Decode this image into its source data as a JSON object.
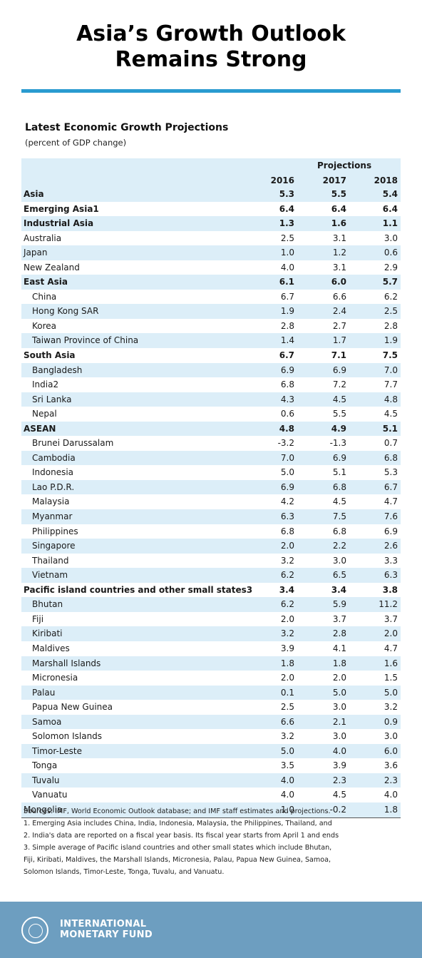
{
  "title_line1": "Asia’s Growth Outlook",
  "title_line2": "Remains Strong",
  "table_title": "Latest Economic Growth Projections",
  "table_subtitle": "(percent of GDP change)",
  "projections_label": "Projections",
  "years": [
    "2016",
    "2017",
    "2018"
  ],
  "rows": [
    {
      "label": "Asia",
      "v": [
        "5.3",
        "5.5",
        "5.4"
      ],
      "bold": true,
      "indent": false
    },
    {
      "label": "Emerging Asia1",
      "v": [
        "6.4",
        "6.4",
        "6.4"
      ],
      "bold": true,
      "indent": false
    },
    {
      "label": "Industrial Asia",
      "v": [
        "1.3",
        "1.6",
        "1.1"
      ],
      "bold": true,
      "indent": false
    },
    {
      "label": "Australia",
      "v": [
        "2.5",
        "3.1",
        "3.0"
      ],
      "bold": false,
      "indent": false
    },
    {
      "label": "Japan",
      "v": [
        "1.0",
        "1.2",
        "0.6"
      ],
      "bold": false,
      "indent": false
    },
    {
      "label": "New Zealand",
      "v": [
        "4.0",
        "3.1",
        "2.9"
      ],
      "bold": false,
      "indent": false
    },
    {
      "label": "East Asia",
      "v": [
        "6.1",
        "6.0",
        "5.7"
      ],
      "bold": true,
      "indent": false
    },
    {
      "label": "China",
      "v": [
        "6.7",
        "6.6",
        "6.2"
      ],
      "bold": false,
      "indent": true
    },
    {
      "label": "Hong Kong SAR",
      "v": [
        "1.9",
        "2.4",
        "2.5"
      ],
      "bold": false,
      "indent": true
    },
    {
      "label": "Korea",
      "v": [
        "2.8",
        "2.7",
        "2.8"
      ],
      "bold": false,
      "indent": true
    },
    {
      "label": "Taiwan Province of China",
      "v": [
        "1.4",
        "1.7",
        "1.9"
      ],
      "bold": false,
      "indent": true
    },
    {
      "label": "South Asia",
      "v": [
        "6.7",
        "7.1",
        "7.5"
      ],
      "bold": true,
      "indent": false
    },
    {
      "label": "Bangladesh",
      "v": [
        "6.9",
        "6.9",
        "7.0"
      ],
      "bold": false,
      "indent": true
    },
    {
      "label": "India2",
      "v": [
        "6.8",
        "7.2",
        "7.7"
      ],
      "bold": false,
      "indent": true
    },
    {
      "label": "Sri Lanka",
      "v": [
        "4.3",
        "4.5",
        "4.8"
      ],
      "bold": false,
      "indent": true
    },
    {
      "label": "Nepal",
      "v": [
        "0.6",
        "5.5",
        "4.5"
      ],
      "bold": false,
      "indent": true
    },
    {
      "label": "ASEAN",
      "v": [
        "4.8",
        "4.9",
        "5.1"
      ],
      "bold": true,
      "indent": false
    },
    {
      "label": "Brunei Darussalam",
      "v": [
        "-3.2",
        "-1.3",
        "0.7"
      ],
      "bold": false,
      "indent": true
    },
    {
      "label": "Cambodia",
      "v": [
        "7.0",
        "6.9",
        "6.8"
      ],
      "bold": false,
      "indent": true
    },
    {
      "label": "Indonesia",
      "v": [
        "5.0",
        "5.1",
        "5.3"
      ],
      "bold": false,
      "indent": true
    },
    {
      "label": "Lao P.D.R.",
      "v": [
        "6.9",
        "6.8",
        "6.7"
      ],
      "bold": false,
      "indent": true
    },
    {
      "label": "Malaysia",
      "v": [
        "4.2",
        "4.5",
        "4.7"
      ],
      "bold": false,
      "indent": true
    },
    {
      "label": "Myanmar",
      "v": [
        "6.3",
        "7.5",
        "7.6"
      ],
      "bold": false,
      "indent": true
    },
    {
      "label": "Philippines",
      "v": [
        "6.8",
        "6.8",
        "6.9"
      ],
      "bold": false,
      "indent": true
    },
    {
      "label": "Singapore",
      "v": [
        "2.0",
        "2.2",
        "2.6"
      ],
      "bold": false,
      "indent": true
    },
    {
      "label": "Thailand",
      "v": [
        "3.2",
        "3.0",
        "3.3"
      ],
      "bold": false,
      "indent": true
    },
    {
      "label": "Vietnam",
      "v": [
        "6.2",
        "6.5",
        "6.3"
      ],
      "bold": false,
      "indent": true
    },
    {
      "label": "Pacific island countries and other small states3",
      "v": [
        "3.4",
        "3.4",
        "3.8"
      ],
      "bold": true,
      "indent": false
    },
    {
      "label": "Bhutan",
      "v": [
        "6.2",
        "5.9",
        "11.2"
      ],
      "bold": false,
      "indent": true
    },
    {
      "label": "Fiji",
      "v": [
        "2.0",
        "3.7",
        "3.7"
      ],
      "bold": false,
      "indent": true
    },
    {
      "label": "Kiribati",
      "v": [
        "3.2",
        "2.8",
        "2.0"
      ],
      "bold": false,
      "indent": true
    },
    {
      "label": "Maldives",
      "v": [
        "3.9",
        "4.1",
        "4.7"
      ],
      "bold": false,
      "indent": true
    },
    {
      "label": "Marshall Islands",
      "v": [
        "1.8",
        "1.8",
        "1.6"
      ],
      "bold": false,
      "indent": true
    },
    {
      "label": "Micronesia",
      "v": [
        "2.0",
        "2.0",
        "1.5"
      ],
      "bold": false,
      "indent": true
    },
    {
      "label": "Palau",
      "v": [
        "0.1",
        "5.0",
        "5.0"
      ],
      "bold": false,
      "indent": true
    },
    {
      "label": "Papua New Guinea",
      "v": [
        "2.5",
        "3.0",
        "3.2"
      ],
      "bold": false,
      "indent": true
    },
    {
      "label": "Samoa",
      "v": [
        "6.6",
        "2.1",
        "0.9"
      ],
      "bold": false,
      "indent": true
    },
    {
      "label": "Solomon Islands",
      "v": [
        "3.2",
        "3.0",
        "3.0"
      ],
      "bold": false,
      "indent": true
    },
    {
      "label": "Timor-Leste",
      "v": [
        "5.0",
        "4.0",
        "6.0"
      ],
      "bold": false,
      "indent": true
    },
    {
      "label": "Tonga",
      "v": [
        "3.5",
        "3.9",
        "3.6"
      ],
      "bold": false,
      "indent": true
    },
    {
      "label": "Tuvalu",
      "v": [
        "4.0",
        "2.3",
        "2.3"
      ],
      "bold": false,
      "indent": true
    },
    {
      "label": "Vanuatu",
      "v": [
        "4.0",
        "4.5",
        "4.0"
      ],
      "bold": false,
      "indent": true
    },
    {
      "label": "Mongolia",
      "v": [
        "1.0",
        "-0.2",
        "1.8"
      ],
      "bold": false,
      "indent": false
    }
  ],
  "notes": [
    "Sources: IMF, World Economic Outlook database; and IMF staff estimates and projections.",
    "1. Emerging Asia includes China, India, Indonesia, Malaysia, the Philippines, Thailand, and",
    "2. India's data are reported on a fiscal year basis. Its fiscal year starts from April 1 and ends",
    "3. Simple average of Pacific island countries and other small states which include Bhutan,",
    "Fiji, Kiribati, Maldives, the Marshall Islands, Micronesia, Palau, Papua New Guinea, Samoa,",
    "Solomon Islands, Timor-Leste, Tonga, Tuvalu, and Vanuatu."
  ],
  "footer": {
    "org_line1": "INTERNATIONAL",
    "org_line2": "MONETARY FUND",
    "seal_icon": "imf-seal-icon",
    "bg_color": "#6d9ec0"
  },
  "colors": {
    "accent_rule": "#2a9bd0",
    "row_shade": "#dceef8"
  }
}
